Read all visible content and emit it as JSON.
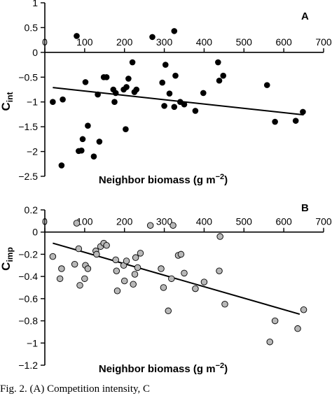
{
  "caption": "Fig. 2. (A) Competition intensity, C",
  "chart_data": [
    {
      "type": "scatter",
      "panel_label": "A",
      "xlabel": "Neighbor biomass (g m",
      "xlabel_unit_exp": "−2",
      "xlabel_close": ")",
      "ylabel_main": "C",
      "ylabel_sub": "int",
      "xlim": [
        0,
        700
      ],
      "ylim": [
        -2.5,
        1
      ],
      "x_ticks": [
        0,
        100,
        200,
        300,
        400,
        500,
        600,
        700
      ],
      "x_tick_labels": [
        "0",
        "100",
        "200",
        "300",
        "400",
        "500",
        "600",
        "700"
      ],
      "y_ticks": [
        1,
        0.5,
        0,
        -0.5,
        -1,
        -1.5,
        -2,
        -2.5
      ],
      "y_tick_labels": [
        "1",
        "0.5",
        "0",
        "−0.5",
        "−1",
        "−1.5",
        "−2",
        "−2.5"
      ],
      "marker_color": "#000000",
      "points": [
        [
          80,
          0.33
        ],
        [
          270,
          0.31
        ],
        [
          325,
          0.43
        ],
        [
          20,
          -1.0
        ],
        [
          42,
          -2.28
        ],
        [
          45,
          -0.95
        ],
        [
          85,
          -1.99
        ],
        [
          92,
          -1.98
        ],
        [
          95,
          -1.75
        ],
        [
          102,
          -0.6
        ],
        [
          108,
          -1.48
        ],
        [
          123,
          -2.1
        ],
        [
          133,
          -0.85
        ],
        [
          137,
          -1.8
        ],
        [
          148,
          -0.5
        ],
        [
          155,
          -0.5
        ],
        [
          172,
          -0.75
        ],
        [
          175,
          -1.0
        ],
        [
          178,
          -0.82
        ],
        [
          198,
          -0.75
        ],
        [
          203,
          -1.55
        ],
        [
          205,
          -0.7
        ],
        [
          210,
          -0.53
        ],
        [
          220,
          -0.2
        ],
        [
          225,
          -0.8
        ],
        [
          230,
          -0.75
        ],
        [
          295,
          -0.61
        ],
        [
          300,
          -1.08
        ],
        [
          303,
          -0.25
        ],
        [
          313,
          -0.83
        ],
        [
          325,
          -1.1
        ],
        [
          328,
          -0.47
        ],
        [
          340,
          -1.0
        ],
        [
          350,
          -1.05
        ],
        [
          378,
          -1.18
        ],
        [
          398,
          -0.82
        ],
        [
          435,
          -0.2
        ],
        [
          438,
          -0.57
        ],
        [
          448,
          -0.47
        ],
        [
          558,
          -0.66
        ],
        [
          578,
          -1.4
        ],
        [
          630,
          -1.38
        ],
        [
          648,
          -1.2
        ]
      ],
      "trend": {
        "x": [
          20,
          650
        ],
        "y": [
          -0.71,
          -1.26
        ]
      }
    },
    {
      "type": "scatter",
      "panel_label": "B",
      "xlabel": "Neighbor biomass (g m",
      "xlabel_unit_exp": "−2",
      "xlabel_close": ")",
      "ylabel_main": "C",
      "ylabel_sub": "imp",
      "xlim": [
        0,
        700
      ],
      "ylim": [
        -1.2,
        0.2
      ],
      "x_ticks": [
        0,
        100,
        200,
        300,
        400,
        500,
        600,
        700
      ],
      "x_tick_labels": [
        "0",
        "100",
        "200",
        "300",
        "400",
        "500",
        "600",
        "700"
      ],
      "y_ticks": [
        0.2,
        0,
        -0.2,
        -0.4,
        -0.6,
        -0.8,
        -1,
        -1.2
      ],
      "y_tick_labels": [
        "0.2",
        "0",
        "−0.2",
        "−0.4",
        "−0.6",
        "−0.8",
        "−1",
        "−1.2"
      ],
      "marker_color": "#b8b8b8",
      "points": [
        [
          80,
          0.08
        ],
        [
          265,
          0.06
        ],
        [
          322,
          0.06
        ],
        [
          440,
          -0.04
        ],
        [
          20,
          -0.22
        ],
        [
          38,
          -0.42
        ],
        [
          42,
          -0.33
        ],
        [
          75,
          -0.29
        ],
        [
          85,
          -0.15
        ],
        [
          88,
          -0.48
        ],
        [
          100,
          -0.42
        ],
        [
          102,
          -0.3
        ],
        [
          108,
          -0.33
        ],
        [
          128,
          -0.17
        ],
        [
          130,
          -0.2
        ],
        [
          140,
          -0.13
        ],
        [
          148,
          -0.1
        ],
        [
          155,
          -0.12
        ],
        [
          178,
          -0.25
        ],
        [
          180,
          -0.35
        ],
        [
          182,
          -0.53
        ],
        [
          198,
          -0.3
        ],
        [
          200,
          -0.44
        ],
        [
          205,
          -0.26
        ],
        [
          222,
          -0.47
        ],
        [
          226,
          -0.38
        ],
        [
          228,
          -0.23
        ],
        [
          233,
          -0.32
        ],
        [
          240,
          -0.19
        ],
        [
          292,
          -0.33
        ],
        [
          298,
          -0.5
        ],
        [
          310,
          -0.71
        ],
        [
          318,
          -0.42
        ],
        [
          335,
          -0.21
        ],
        [
          342,
          -0.2
        ],
        [
          350,
          -0.37
        ],
        [
          378,
          -0.51
        ],
        [
          400,
          -0.45
        ],
        [
          438,
          -0.35
        ],
        [
          452,
          -0.65
        ],
        [
          565,
          -0.99
        ],
        [
          578,
          -0.8
        ],
        [
          635,
          -0.87
        ],
        [
          650,
          -0.7
        ]
      ],
      "trend": {
        "x": [
          20,
          640
        ],
        "y": [
          -0.1,
          -0.74
        ]
      }
    }
  ]
}
